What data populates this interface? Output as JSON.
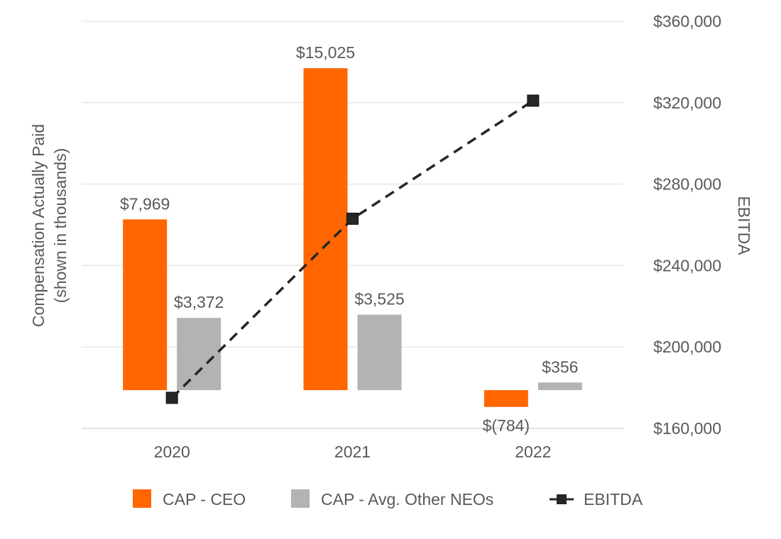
{
  "chart_data": {
    "type": "bar+line",
    "categories": [
      "2020",
      "2021",
      "2022"
    ],
    "series": [
      {
        "name": "CAP - CEO",
        "kind": "bar",
        "axis": "left",
        "color": "#ff6600",
        "values": [
          7969,
          15025,
          -784
        ],
        "labels": [
          "$7,969",
          "$15,025",
          "$(784)"
        ]
      },
      {
        "name": "CAP - Avg. Other NEOs",
        "kind": "bar",
        "axis": "left",
        "color": "#b3b3b3",
        "values": [
          3372,
          3525,
          356
        ],
        "labels": [
          "$3,372",
          "$3,525",
          "$356"
        ]
      },
      {
        "name": "EBITDA",
        "kind": "line",
        "axis": "right",
        "color": "#262626",
        "dash": "dashed",
        "marker": "square",
        "values": [
          175000,
          263000,
          321000
        ]
      }
    ],
    "y_left": {
      "label_line1": "Compensation Actually Paid",
      "label_line2": "(shown in thousands)",
      "ylim": [
        -1784,
        17216
      ]
    },
    "y_right": {
      "label": "EBITDA",
      "ylim": [
        160000,
        360000
      ],
      "ticks": [
        160000,
        200000,
        240000,
        280000,
        320000,
        360000
      ],
      "tick_labels": [
        "$160,000",
        "$200,000",
        "$240,000",
        "$280,000",
        "$320,000",
        "$360,000"
      ]
    },
    "grid": true,
    "legend": {
      "position": "bottom",
      "entries": [
        "CAP - CEO",
        "CAP - Avg. Other NEOs",
        "EBITDA"
      ]
    }
  }
}
